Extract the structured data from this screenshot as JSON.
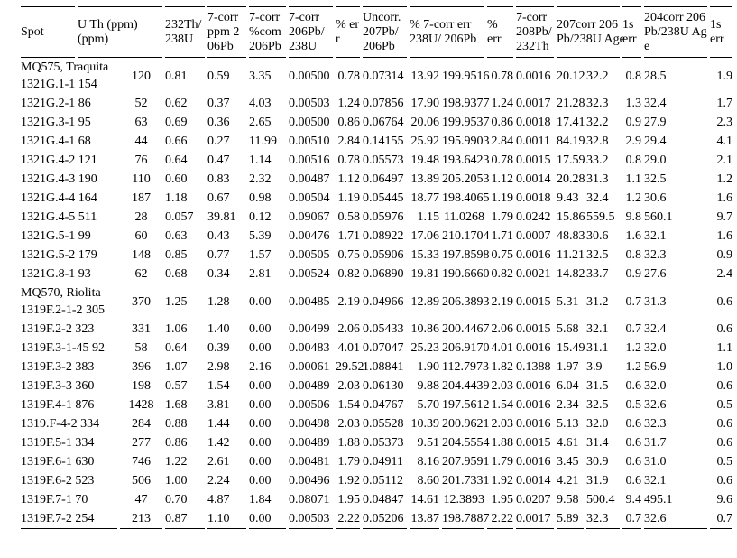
{
  "page": {
    "background": "#ffffff",
    "text_color": "#000000",
    "border_color": "#000000"
  },
  "table": {
    "headers": [
      {
        "label": "Spot",
        "span": 1
      },
      {
        "label": "U Th (ppm)\n(ppm)",
        "span": 2
      },
      {
        "label": "232Th/\n238U",
        "span": 1
      },
      {
        "label": "7-corr\nppm 2\n06Pb",
        "span": 1
      },
      {
        "label": "7-corr\n%com\n206Pb",
        "span": 1
      },
      {
        "label": "7-corr\n206Pb/\n238U",
        "span": 1
      },
      {
        "label": "% er\nr",
        "span": 1
      },
      {
        "label": "Uncorr.\n207Pb/\n206Pb",
        "span": 1
      },
      {
        "label": "% 7-corr err\n238U/ 206Pb",
        "span": 2
      },
      {
        "label": "%\nerr",
        "span": 1
      },
      {
        "label": "7-corr\n208Pb/\n232Th",
        "span": 1
      },
      {
        "label": "207corr 206\nPb/238U Age",
        "span": 2
      },
      {
        "label": "1s\nerr",
        "span": 1
      },
      {
        "label": "204corr 206\nPb/238U Ag\ne",
        "span": 1
      },
      {
        "label": "1s\nerr",
        "span": 1
      }
    ],
    "rows": [
      {
        "group": "MQ575, Traquita",
        "spot": "1321G.1-1 154",
        "values": [
          "120",
          "0.81",
          "0.59",
          "3.35",
          "0.00500",
          "0.78",
          "0.07314",
          "13.92",
          "199.9516",
          "0.78",
          "0.0016",
          "20.12",
          "32.2",
          "0.8",
          "28.5",
          "1.9"
        ]
      },
      {
        "spot": "1321G.2-1 86",
        "values": [
          "52",
          "0.62",
          "0.37",
          "4.03",
          "0.00503",
          "1.24",
          "0.07856",
          "17.90",
          "198.9377",
          "1.24",
          "0.0017",
          "21.28",
          "32.3",
          "1.3",
          "32.4",
          "1.7"
        ]
      },
      {
        "spot": "1321G.3-1 95",
        "values": [
          "63",
          "0.69",
          "0.36",
          "2.65",
          "0.00500",
          "0.86",
          "0.06764",
          "20.06",
          "199.9537",
          "0.86",
          "0.0018",
          "17.41",
          "32.2",
          "0.9",
          "27.9",
          "2.3"
        ]
      },
      {
        "spot": "1321G.4-1 68",
        "values": [
          "44",
          "0.66",
          "0.27",
          "11.99",
          "0.00510",
          "2.84",
          "0.14155",
          "25.92",
          "195.9903",
          "2.84",
          "0.0011",
          "84.19",
          "32.8",
          "2.9",
          "29.4",
          "4.1"
        ]
      },
      {
        "spot": "1321G.4-2 121",
        "values": [
          "76",
          "0.64",
          "0.47",
          "1.14",
          "0.00516",
          "0.78",
          "0.05573",
          "19.48",
          "193.6423",
          "0.78",
          "0.0015",
          "17.59",
          "33.2",
          "0.8",
          "29.0",
          "2.1"
        ]
      },
      {
        "spot": "1321G.4-3 190",
        "values": [
          "110",
          "0.60",
          "0.83",
          "2.32",
          "0.00487",
          "1.12",
          "0.06497",
          "13.89",
          "205.2053",
          "1.12",
          "0.0014",
          "20.28",
          "31.3",
          "1.1",
          "32.5",
          "1.2"
        ]
      },
      {
        "spot": "1321G.4-4 164",
        "values": [
          "187",
          "1.18",
          "0.67",
          "0.98",
          "0.00504",
          "1.19",
          "0.05445",
          "18.77",
          "198.4065",
          "1.19",
          "0.0018",
          "9.43",
          "32.4",
          "1.2",
          "30.6",
          "1.6"
        ]
      },
      {
        "spot": "1321G.4-5 511",
        "values": [
          "28",
          "0.057",
          "39.81",
          "0.12",
          "0.09067",
          "0.58",
          "0.05976",
          "1.15",
          "11.0268",
          "1.79",
          "0.0242",
          "15.86",
          "559.5",
          "9.8",
          "560.1",
          "9.7"
        ]
      },
      {
        "spot": "1321G.5-1 99",
        "values": [
          "60",
          "0.63",
          "0.43",
          "5.39",
          "0.00476",
          "1.71",
          "0.08922",
          "17.06",
          "210.1704",
          "1.71",
          "0.0007",
          "48.83",
          "30.6",
          "1.6",
          "32.1",
          "1.6"
        ]
      },
      {
        "spot": "1321G.5-2 179",
        "values": [
          "148",
          "0.85",
          "0.77",
          "1.57",
          "0.00505",
          "0.75",
          "0.05906",
          "15.33",
          "197.8598",
          "0.75",
          "0.0016",
          "11.21",
          "32.5",
          "0.8",
          "32.3",
          "0.9"
        ]
      },
      {
        "spot": "1321G.8-1 93",
        "values": [
          "62",
          "0.68",
          "0.34",
          "2.81",
          "0.00524",
          "0.82",
          "0.06890",
          "19.81",
          "190.6660",
          "0.82",
          "0.0021",
          "14.82",
          "33.7",
          "0.9",
          "27.6",
          "2.4"
        ]
      },
      {
        "group": "MQ570, Riolita",
        "spot": "1319F.2-1-2 305",
        "values": [
          "370",
          "1.25",
          "1.28",
          "0.00",
          "0.00485",
          "2.19",
          "0.04966",
          "12.89",
          "206.3893",
          "2.19",
          "0.0015",
          "5.31",
          "31.2",
          "0.7",
          "31.3",
          "0.6"
        ]
      },
      {
        "spot": "1319F.2-2 323",
        "values": [
          "331",
          "1.06",
          "1.40",
          "0.00",
          "0.00499",
          "2.06",
          "0.05433",
          "10.86",
          "200.4467",
          "2.06",
          "0.0015",
          "5.68",
          "32.1",
          "0.7",
          "32.4",
          "0.6"
        ]
      },
      {
        "spot": "1319F.3-1-45 92",
        "values": [
          "58",
          "0.64",
          "0.39",
          "0.00",
          "0.00483",
          "4.01",
          "0.07047",
          "25.23",
          "206.9170",
          "4.01",
          "0.0016",
          "15.49",
          "31.1",
          "1.2",
          "32.0",
          "1.1"
        ]
      },
      {
        "spot": "1319F.3-2 383",
        "values": [
          "396",
          "1.07",
          "2.98",
          "2.16",
          "0.00061",
          "29.52",
          "1.08841",
          "1.90",
          "112.7973",
          "1.82",
          "0.1388",
          "1.97",
          "3.9",
          "1.2",
          "56.9",
          "1.0"
        ]
      },
      {
        "spot": "1319F.3-3 360",
        "values": [
          "198",
          "0.57",
          "1.54",
          "0.00",
          "0.00489",
          "2.03",
          "0.06130",
          "9.88",
          "204.4439",
          "2.03",
          "0.0016",
          "6.04",
          "31.5",
          "0.6",
          "32.0",
          "0.6"
        ]
      },
      {
        "spot": "1319F.4-1 876",
        "values": [
          "1428",
          "1.68",
          "3.81",
          "0.00",
          "0.00506",
          "1.54",
          "0.04767",
          "5.70",
          "197.5612",
          "1.54",
          "0.0016",
          "2.34",
          "32.5",
          "0.5",
          "32.6",
          "0.5"
        ]
      },
      {
        "spot": "1319.F-4-2 334",
        "values": [
          "284",
          "0.88",
          "1.44",
          "0.00",
          "0.00498",
          "2.03",
          "0.05528",
          "10.39",
          "200.9621",
          "2.03",
          "0.0016",
          "5.13",
          "32.0",
          "0.6",
          "32.3",
          "0.6"
        ]
      },
      {
        "spot": "1319F.5-1 334",
        "values": [
          "277",
          "0.86",
          "1.42",
          "0.00",
          "0.00489",
          "1.88",
          "0.05373",
          "9.51",
          "204.5554",
          "1.88",
          "0.0015",
          "4.61",
          "31.4",
          "0.6",
          "31.7",
          "0.6"
        ]
      },
      {
        "spot": "1319F.6-1 630",
        "values": [
          "746",
          "1.22",
          "2.61",
          "0.00",
          "0.00481",
          "1.79",
          "0.04911",
          "8.16",
          "207.9591",
          "1.79",
          "0.0016",
          "3.45",
          "30.9",
          "0.6",
          "31.0",
          "0.5"
        ]
      },
      {
        "spot": "1319F.6-2 523",
        "values": [
          "506",
          "1.00",
          "2.24",
          "0.00",
          "0.00496",
          "1.92",
          "0.05112",
          "8.60",
          "201.7331",
          "1.92",
          "0.0014",
          "4.21",
          "31.9",
          "0.6",
          "32.1",
          "0.6"
        ]
      },
      {
        "spot": "1319F.7-1 70",
        "values": [
          "47",
          "0.70",
          "4.87",
          "1.84",
          "0.08071",
          "1.95",
          "0.04847",
          "14.61",
          "12.3893",
          "1.95",
          "0.0207",
          "9.58",
          "500.4",
          "9.4",
          "495.1",
          "9.6"
        ]
      },
      {
        "spot": "1319F.7-2 254",
        "values": [
          "213",
          "0.87",
          "1.10",
          "0.00",
          "0.00503",
          "2.22",
          "0.05206",
          "13.87",
          "198.7887",
          "2.22",
          "0.0017",
          "5.89",
          "32.3",
          "0.7",
          "32.6",
          "0.7"
        ]
      }
    ]
  }
}
